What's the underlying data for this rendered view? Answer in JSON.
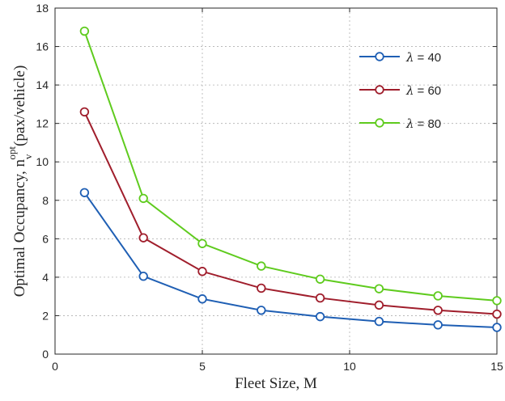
{
  "chart_data": {
    "type": "line",
    "xlabel": "Fleet Size, M",
    "ylabel": {
      "prefix": "Optimal Occupancy, n",
      "superscript": "opt",
      "subscript": "v",
      "suffix": "(pax/vehicle)"
    },
    "xlim": [
      0,
      15
    ],
    "ylim": [
      0,
      18
    ],
    "xticks": [
      0,
      5,
      10,
      15
    ],
    "yticks": [
      0,
      2,
      4,
      6,
      8,
      10,
      12,
      14,
      16,
      18
    ],
    "grid": true,
    "legend_position": "top-right",
    "x": [
      1,
      3,
      5,
      7,
      9,
      11,
      13,
      15
    ],
    "series": [
      {
        "name": "= 40",
        "symbol": "λ",
        "color": "#1f5fb4",
        "values": [
          8.4,
          4.05,
          2.87,
          2.28,
          1.95,
          1.7,
          1.52,
          1.39
        ]
      },
      {
        "name": "= 60",
        "symbol": "λ",
        "color": "#a01e2c",
        "values": [
          12.6,
          6.05,
          4.3,
          3.43,
          2.92,
          2.55,
          2.28,
          2.08
        ]
      },
      {
        "name": "= 80",
        "symbol": "λ",
        "color": "#5fcb1e",
        "values": [
          16.8,
          8.1,
          5.75,
          4.58,
          3.9,
          3.4,
          3.03,
          2.78
        ]
      }
    ]
  }
}
